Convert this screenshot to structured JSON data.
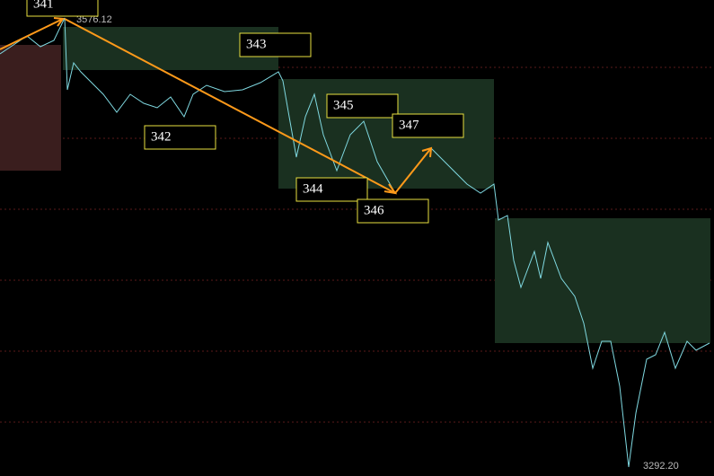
{
  "wave_labels": [
    "341",
    "342",
    "343",
    "344",
    "345",
    "346",
    "347"
  ],
  "high_label": "3576.12",
  "low_label": "3292.20"
}
